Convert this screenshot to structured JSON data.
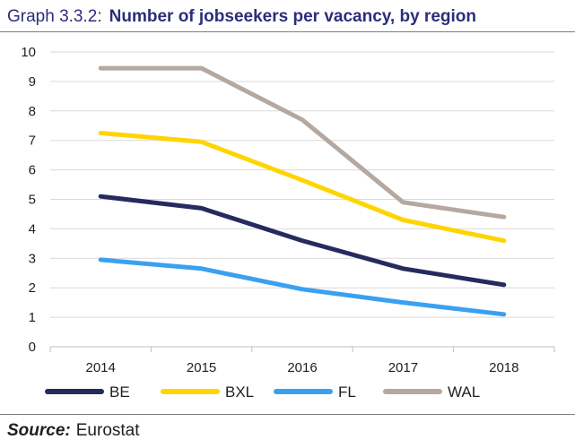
{
  "header": {
    "prefix": "Graph 3.3.2:",
    "title": "Number of jobseekers per vacancy, by region"
  },
  "footer": {
    "source_label": "Source:",
    "source_value": "Eurostat"
  },
  "chart_data": {
    "type": "line",
    "title": "Number of jobseekers per vacancy, by region",
    "xlabel": "",
    "ylabel": "",
    "categories": [
      "2014",
      "2015",
      "2016",
      "2017",
      "2018"
    ],
    "ylim": [
      0,
      10
    ],
    "yticks": [
      0,
      1,
      2,
      3,
      4,
      5,
      6,
      7,
      8,
      9,
      10
    ],
    "grid": true,
    "legend": "bottom",
    "series": [
      {
        "name": "BE",
        "color": "#262b5e",
        "values": [
          5.1,
          4.7,
          3.6,
          2.65,
          2.1
        ]
      },
      {
        "name": "BXL",
        "color": "#ffd400",
        "values": [
          7.25,
          6.95,
          5.65,
          4.3,
          3.6
        ]
      },
      {
        "name": "FL",
        "color": "#3aa1f0",
        "values": [
          2.95,
          2.65,
          1.95,
          1.5,
          1.1
        ]
      },
      {
        "name": "WAL",
        "color": "#b5a8a1",
        "values": [
          9.45,
          9.45,
          7.7,
          4.9,
          4.4
        ]
      }
    ],
    "axis_color": "#bfbfbf",
    "grid_color": "#d9d9d9"
  }
}
